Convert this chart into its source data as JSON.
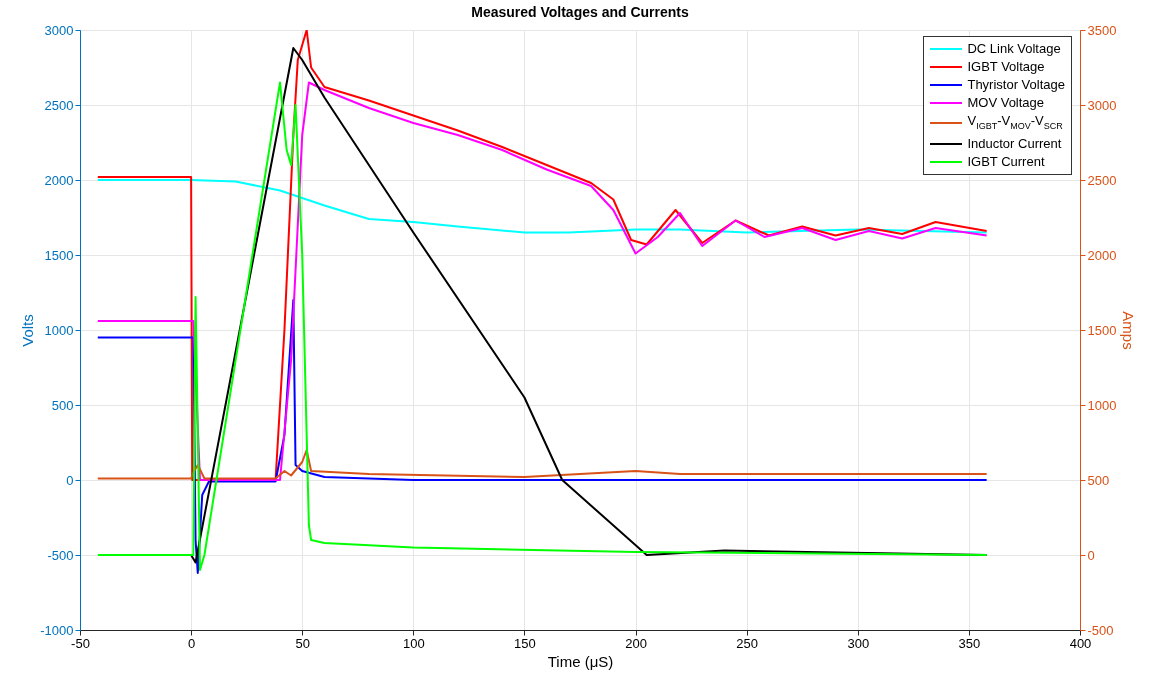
{
  "chart_data": {
    "type": "line",
    "title": "Measured Voltages and Currents",
    "xlabel": "Time (μS)",
    "ylabel": "Volts",
    "y2label": "Amps",
    "xlim": [
      -50,
      400
    ],
    "xticks": [
      -50,
      0,
      50,
      100,
      150,
      200,
      250,
      300,
      350,
      400
    ],
    "ylim": [
      -1000,
      3000
    ],
    "yticks": [
      -1000,
      -500,
      0,
      500,
      1000,
      1500,
      2000,
      2500,
      3000
    ],
    "y2lim": [
      -500,
      3500
    ],
    "y2ticks": [
      -500,
      0,
      500,
      1000,
      1500,
      2000,
      2500,
      3000,
      3500
    ],
    "grid": true,
    "legend": "top right",
    "series": [
      {
        "name": "DC Link Voltage",
        "color": "#00ffff",
        "x": [
          -42,
          0,
          20,
          40,
          60,
          80,
          100,
          120,
          150,
          170,
          200,
          220,
          250,
          300,
          358
        ],
        "values": [
          2000,
          2000,
          1990,
          1930,
          1830,
          1740,
          1720,
          1690,
          1650,
          1650,
          1670,
          1670,
          1650,
          1670,
          1650
        ]
      },
      {
        "name": "IGBT Voltage",
        "color": "#ff0000",
        "x": [
          -42,
          0,
          0.5,
          5,
          38,
          42,
          46,
          48,
          51,
          52,
          54,
          60,
          80,
          100,
          120,
          140,
          160,
          180,
          190,
          198,
          205,
          218,
          230,
          245,
          260,
          275,
          290,
          305,
          320,
          335,
          358
        ],
        "values": [
          2020,
          2020,
          0,
          0,
          0,
          1000,
          2300,
          2800,
          2950,
          3000,
          2750,
          2620,
          2530,
          2430,
          2330,
          2220,
          2100,
          1980,
          1870,
          1600,
          1570,
          1800,
          1580,
          1730,
          1630,
          1690,
          1630,
          1680,
          1640,
          1720,
          1660
        ]
      },
      {
        "name": "Thyristor Voltage",
        "color": "#0000ff",
        "x": [
          -42,
          0,
          1,
          2,
          3,
          5,
          8,
          38,
          42,
          46,
          47,
          50,
          60,
          100,
          358
        ],
        "values": [
          950,
          950,
          950,
          -400,
          -620,
          -100,
          -10,
          -10,
          300,
          1200,
          100,
          60,
          20,
          0,
          0
        ]
      },
      {
        "name": "MOV Voltage",
        "color": "#ff00ff",
        "x": [
          -42,
          0,
          1,
          4,
          40,
          45,
          50,
          53,
          60,
          80,
          100,
          120,
          140,
          160,
          180,
          190,
          200,
          210,
          220,
          230,
          245,
          258,
          275,
          290,
          305,
          320,
          335,
          358
        ],
        "values": [
          1060,
          1060,
          1060,
          0,
          0,
          800,
          2300,
          2650,
          2600,
          2480,
          2380,
          2300,
          2200,
          2070,
          1960,
          1800,
          1510,
          1620,
          1780,
          1560,
          1730,
          1620,
          1680,
          1600,
          1660,
          1610,
          1680,
          1630
        ]
      },
      {
        "name": "V$_{IGBT}$-V$_{MOV}$-V$_{SCR}$",
        "color": "#d95319",
        "x": [
          -42,
          0,
          1,
          3,
          6,
          38,
          42,
          45,
          50,
          52,
          54,
          80,
          150,
          200,
          220,
          260,
          358
        ],
        "values": [
          10,
          10,
          50,
          100,
          10,
          10,
          60,
          30,
          120,
          200,
          60,
          40,
          20,
          60,
          40,
          40,
          40
        ]
      },
      {
        "name": "Inductor Current",
        "color": "#000000",
        "axis": "y2",
        "x": [
          0,
          2,
          46,
          50,
          60,
          100,
          150,
          167,
          205,
          240,
          358
        ],
        "values": [
          0,
          -50,
          3380,
          3300,
          3050,
          2150,
          1050,
          500,
          0,
          30,
          0
        ]
      },
      {
        "name": "IGBT Current",
        "color": "#00ff00",
        "axis": "y2",
        "x": [
          -42,
          0,
          1,
          2,
          4,
          6,
          40,
          43,
          45,
          47,
          50,
          53,
          54,
          60,
          100,
          200,
          358
        ],
        "values": [
          0,
          0,
          0,
          1720,
          -100,
          0,
          3150,
          2700,
          2600,
          3000,
          2000,
          200,
          100,
          80,
          50,
          20,
          0
        ]
      }
    ]
  }
}
